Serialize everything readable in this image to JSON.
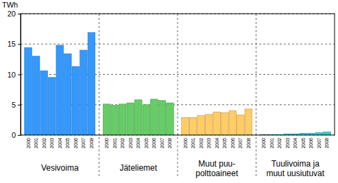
{
  "chart_data": {
    "type": "bar",
    "y_label": "TWh",
    "categories": [
      "2000",
      "2001",
      "2002",
      "2003",
      "2004",
      "2005",
      "2006",
      "2007",
      "2008"
    ],
    "series": [
      {
        "name": "Vesivoima",
        "color": "#3399ff",
        "values": [
          14.4,
          13.0,
          10.6,
          9.5,
          14.8,
          13.4,
          11.3,
          14.0,
          16.9
        ]
      },
      {
        "name": "Jäteliemet",
        "color": "#66cc66",
        "values": [
          5.1,
          4.9,
          5.1,
          5.3,
          5.8,
          5.0,
          5.9,
          5.7,
          5.3
        ]
      },
      {
        "name": "Muut puu-\npolttoaineet",
        "color": "#ffcc66",
        "values": [
          2.9,
          2.9,
          3.2,
          3.4,
          3.8,
          3.7,
          4.0,
          3.3,
          4.3
        ]
      },
      {
        "name": "Tuulivoima ja\nmuut uusiutuvat",
        "color": "#33cccc",
        "values": [
          0.1,
          0.1,
          0.1,
          0.2,
          0.2,
          0.3,
          0.3,
          0.4,
          0.5
        ]
      }
    ],
    "ylim": [
      0,
      20
    ],
    "yticks": [
      0,
      5,
      10,
      15,
      20
    ],
    "grid": true
  }
}
